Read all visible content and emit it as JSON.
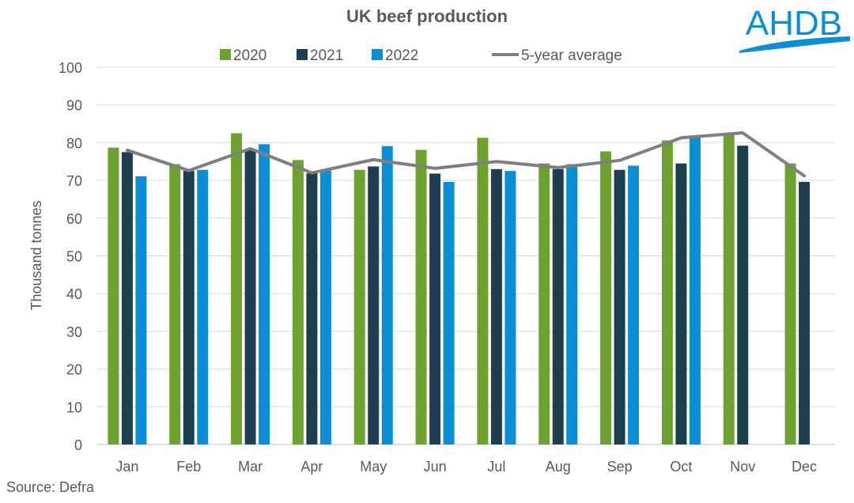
{
  "logo": {
    "text": "AHDB",
    "color": "#0a8fd6"
  },
  "source": "Source: Defra",
  "chart_data": {
    "type": "bar",
    "title": "UK beef production",
    "xlabel": "",
    "ylabel": "Thousand tonnes",
    "ylim": [
      0,
      100
    ],
    "yticks": [
      0,
      10,
      20,
      30,
      40,
      50,
      60,
      70,
      80,
      90,
      100
    ],
    "grid": true,
    "legend_position": "top",
    "categories": [
      "Jan",
      "Feb",
      "Mar",
      "Apr",
      "May",
      "Jun",
      "Jul",
      "Aug",
      "Sep",
      "Oct",
      "Nov",
      "Dec"
    ],
    "series": [
      {
        "name": "2020",
        "type": "bar",
        "color": "#6ea22f",
        "values": [
          78.7,
          74.3,
          82.5,
          75.4,
          72.8,
          78.1,
          81.3,
          74.5,
          77.7,
          80.6,
          82.0,
          74.5
        ]
      },
      {
        "name": "2021",
        "type": "bar",
        "color": "#1e3f4f",
        "values": [
          77.5,
          72.5,
          78.3,
          71.9,
          73.7,
          71.8,
          73.0,
          73.0,
          72.8,
          74.5,
          79.2,
          69.6
        ]
      },
      {
        "name": "2022",
        "type": "bar",
        "color": "#0a8fd6",
        "values": [
          71.1,
          72.8,
          79.6,
          72.6,
          79.1,
          69.6,
          72.5,
          74.3,
          73.9,
          81.5,
          null,
          null
        ]
      },
      {
        "name": "5-year average",
        "type": "line",
        "color": "#7f7f7f",
        "values": [
          78.0,
          72.6,
          78.4,
          72.0,
          75.5,
          73.2,
          75.0,
          73.4,
          75.3,
          81.3,
          82.6,
          71.2
        ]
      }
    ]
  }
}
